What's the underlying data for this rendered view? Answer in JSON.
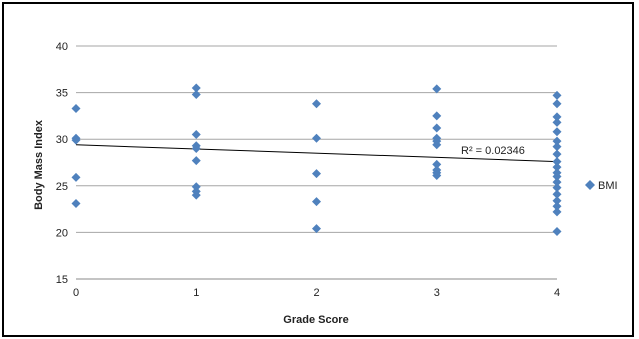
{
  "chart_data": {
    "type": "scatter",
    "title": "",
    "xlabel": "Grade Score",
    "ylabel": "Body Mass Index",
    "xlim": [
      0,
      4
    ],
    "ylim": [
      15,
      40
    ],
    "x_ticks": [
      "0",
      "1",
      "2",
      "3",
      "4"
    ],
    "y_ticks": [
      "15",
      "20",
      "25",
      "30",
      "35",
      "40"
    ],
    "grid": "horizontal",
    "legend_position": "right",
    "series": [
      {
        "name": "BMI",
        "color": "#4f81bd",
        "marker": "diamond",
        "points": [
          [
            0,
            33.3
          ],
          [
            0,
            30.1
          ],
          [
            0,
            29.9
          ],
          [
            0,
            25.9
          ],
          [
            0,
            23.1
          ],
          [
            1,
            35.5
          ],
          [
            1,
            34.8
          ],
          [
            1,
            30.5
          ],
          [
            1,
            29.3
          ],
          [
            1,
            29.0
          ],
          [
            1,
            27.7
          ],
          [
            1,
            24.9
          ],
          [
            1,
            24.4
          ],
          [
            1,
            24.0
          ],
          [
            2,
            33.8
          ],
          [
            2,
            30.1
          ],
          [
            2,
            26.3
          ],
          [
            2,
            23.3
          ],
          [
            2,
            20.4
          ],
          [
            3,
            35.4
          ],
          [
            3,
            32.5
          ],
          [
            3,
            31.2
          ],
          [
            3,
            30.1
          ],
          [
            3,
            29.8
          ],
          [
            3,
            29.4
          ],
          [
            3,
            27.3
          ],
          [
            3,
            26.7
          ],
          [
            3,
            26.4
          ],
          [
            3,
            26.1
          ],
          [
            4,
            34.7
          ],
          [
            4,
            33.8
          ],
          [
            4,
            32.4
          ],
          [
            4,
            31.8
          ],
          [
            4,
            30.8
          ],
          [
            4,
            29.8
          ],
          [
            4,
            29.2
          ],
          [
            4,
            28.4
          ],
          [
            4,
            27.6
          ],
          [
            4,
            27.0
          ],
          [
            4,
            26.4
          ],
          [
            4,
            26.0
          ],
          [
            4,
            25.4
          ],
          [
            4,
            24.8
          ],
          [
            4,
            24.1
          ],
          [
            4,
            23.4
          ],
          [
            4,
            22.8
          ],
          [
            4,
            22.2
          ],
          [
            4,
            20.1
          ]
        ]
      }
    ],
    "trendline": {
      "type": "linear",
      "start": [
        0,
        29.4
      ],
      "end": [
        4,
        27.6
      ],
      "color": "#000000"
    },
    "annotation": "R² = 0.02346"
  }
}
